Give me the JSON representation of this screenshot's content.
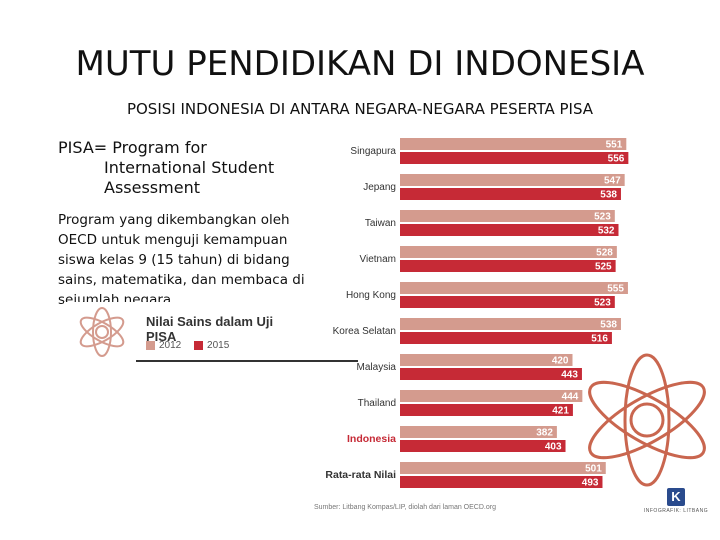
{
  "slide": {
    "title": "MUTU PENDIDIKAN DI INDONESIA",
    "subtitle": "POSISI INDONESIA DI ANTARA NEGARA-NEGARA PESERTA PISA",
    "pisa_def_line1": "PISA= Program for",
    "pisa_def_line2": "International Student",
    "pisa_def_line3": "Assessment",
    "description": "Program yang dikembangkan oleh OECD untuk menguji kemampuan siswa kelas 9 (15 tahun) di bidang sains, matematika, dan membaca di sejumlah negara"
  },
  "legend": {
    "title": "Nilai Sains dalam Uji PISA",
    "label_2012": "2012",
    "label_2015": "2015",
    "color_2012": "#d49b8e",
    "color_2015": "#c62a36"
  },
  "footer": {
    "source": "Sumber: Litbang Kompas/LIP, diolah dari laman OECD.org",
    "brand": "INFOGRAFIK: LITBANG",
    "brand_letter": "K"
  },
  "chart_data": {
    "type": "bar",
    "orientation": "horizontal",
    "title": "Nilai Sains dalam Uji PISA",
    "categories": [
      "Singapura",
      "Jepang",
      "Taiwan",
      "Vietnam",
      "Hong Kong",
      "Korea Selatan",
      "Malaysia",
      "Thailand",
      "Indonesia",
      "Rata-rata Nilai"
    ],
    "highlight": [
      "Indonesia",
      "Rata-rata Nilai"
    ],
    "series": [
      {
        "name": "2012",
        "color": "#d49b8e",
        "values": [
          551,
          547,
          523,
          528,
          555,
          538,
          420,
          444,
          382,
          501
        ]
      },
      {
        "name": "2015",
        "color": "#c62a36",
        "values": [
          556,
          538,
          532,
          525,
          523,
          516,
          443,
          421,
          403,
          493
        ]
      }
    ]
  }
}
